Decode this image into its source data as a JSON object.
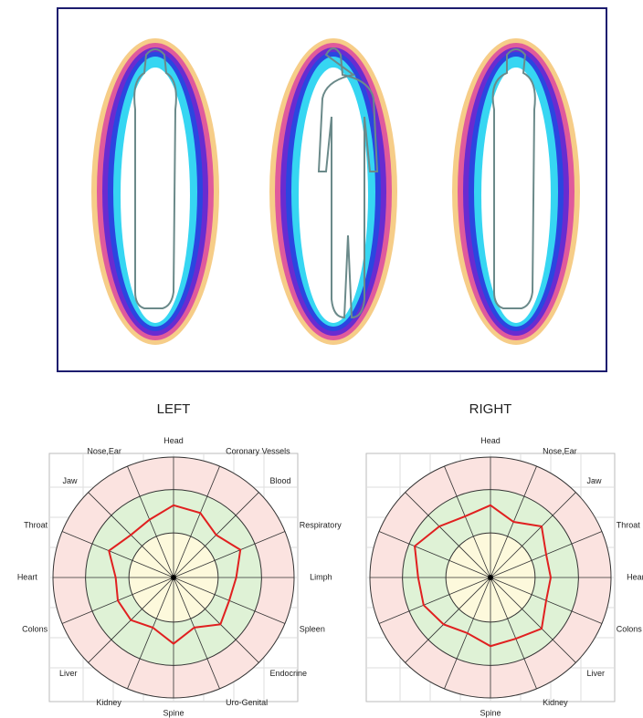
{
  "chart_data": [
    {
      "type": "radar",
      "title": "LEFT",
      "ylim": [
        0,
        1
      ],
      "color": "#e02020",
      "categories": [
        "Head",
        "Coronary Vessels",
        "Blood",
        "Respiratory",
        "Limph",
        "Spleen",
        "Endocrine",
        "Uro-Genital",
        "Spine",
        "Kidney",
        "Liver",
        "Colons",
        "Heart",
        "Throat",
        "Jaw",
        "Nose,Ear"
      ],
      "values": [
        0.6,
        0.58,
        0.5,
        0.6,
        0.52,
        0.5,
        0.55,
        0.45,
        0.55,
        0.45,
        0.5,
        0.5,
        0.48,
        0.58,
        0.5,
        0.52
      ]
    },
    {
      "type": "radar",
      "title": "RIGHT",
      "ylim": [
        0,
        1
      ],
      "color": "#e02020",
      "categories": [
        "Head",
        "Nose,Ear",
        "Jaw",
        "Throat",
        "Heart",
        "Colons",
        "Liver",
        "Kidney",
        "Spine",
        null,
        null,
        null,
        null,
        null,
        null,
        null
      ],
      "values": [
        0.6,
        0.5,
        0.6,
        0.5,
        0.5,
        0.5,
        0.6,
        0.55,
        0.57,
        0.5,
        0.55,
        0.6,
        0.6,
        0.68,
        0.6,
        0.55
      ]
    }
  ]
}
